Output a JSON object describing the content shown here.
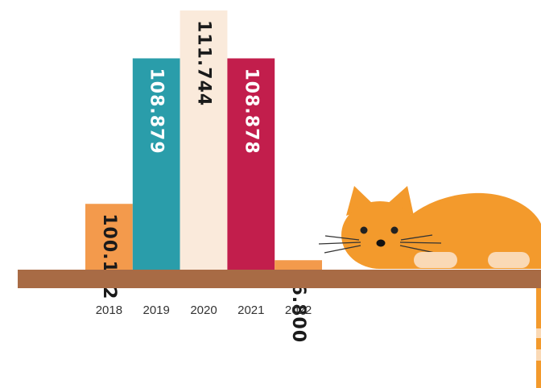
{
  "chart_data": {
    "type": "bar",
    "categories": [
      "2018",
      "2019",
      "2020",
      "2021",
      "2022"
    ],
    "values": [
      100.172,
      108.879,
      111.744,
      108.878,
      96.8
    ],
    "value_labels": [
      "100.172",
      "108.879",
      "111.744",
      "108.878",
      "96.800"
    ],
    "title": "",
    "xlabel": "",
    "ylabel": "",
    "grid": false,
    "legend": "none",
    "colors": {
      "bars": [
        "#F39A4C",
        "#2A9DAA",
        "#FAEADB",
        "#C21E4C",
        "#F39A4C"
      ],
      "label_text": [
        "#1a1a1a",
        "#ffffff",
        "#1a1a1a",
        "#ffffff",
        "#1a1a1a"
      ],
      "shelf": "#A86B45",
      "cat_body": "#F39A2C",
      "cat_paws": "#FAD9B5"
    }
  },
  "decorations": {
    "illustration": "cat-on-bookshelf",
    "icons": [
      "cat-icon",
      "shelf"
    ]
  }
}
